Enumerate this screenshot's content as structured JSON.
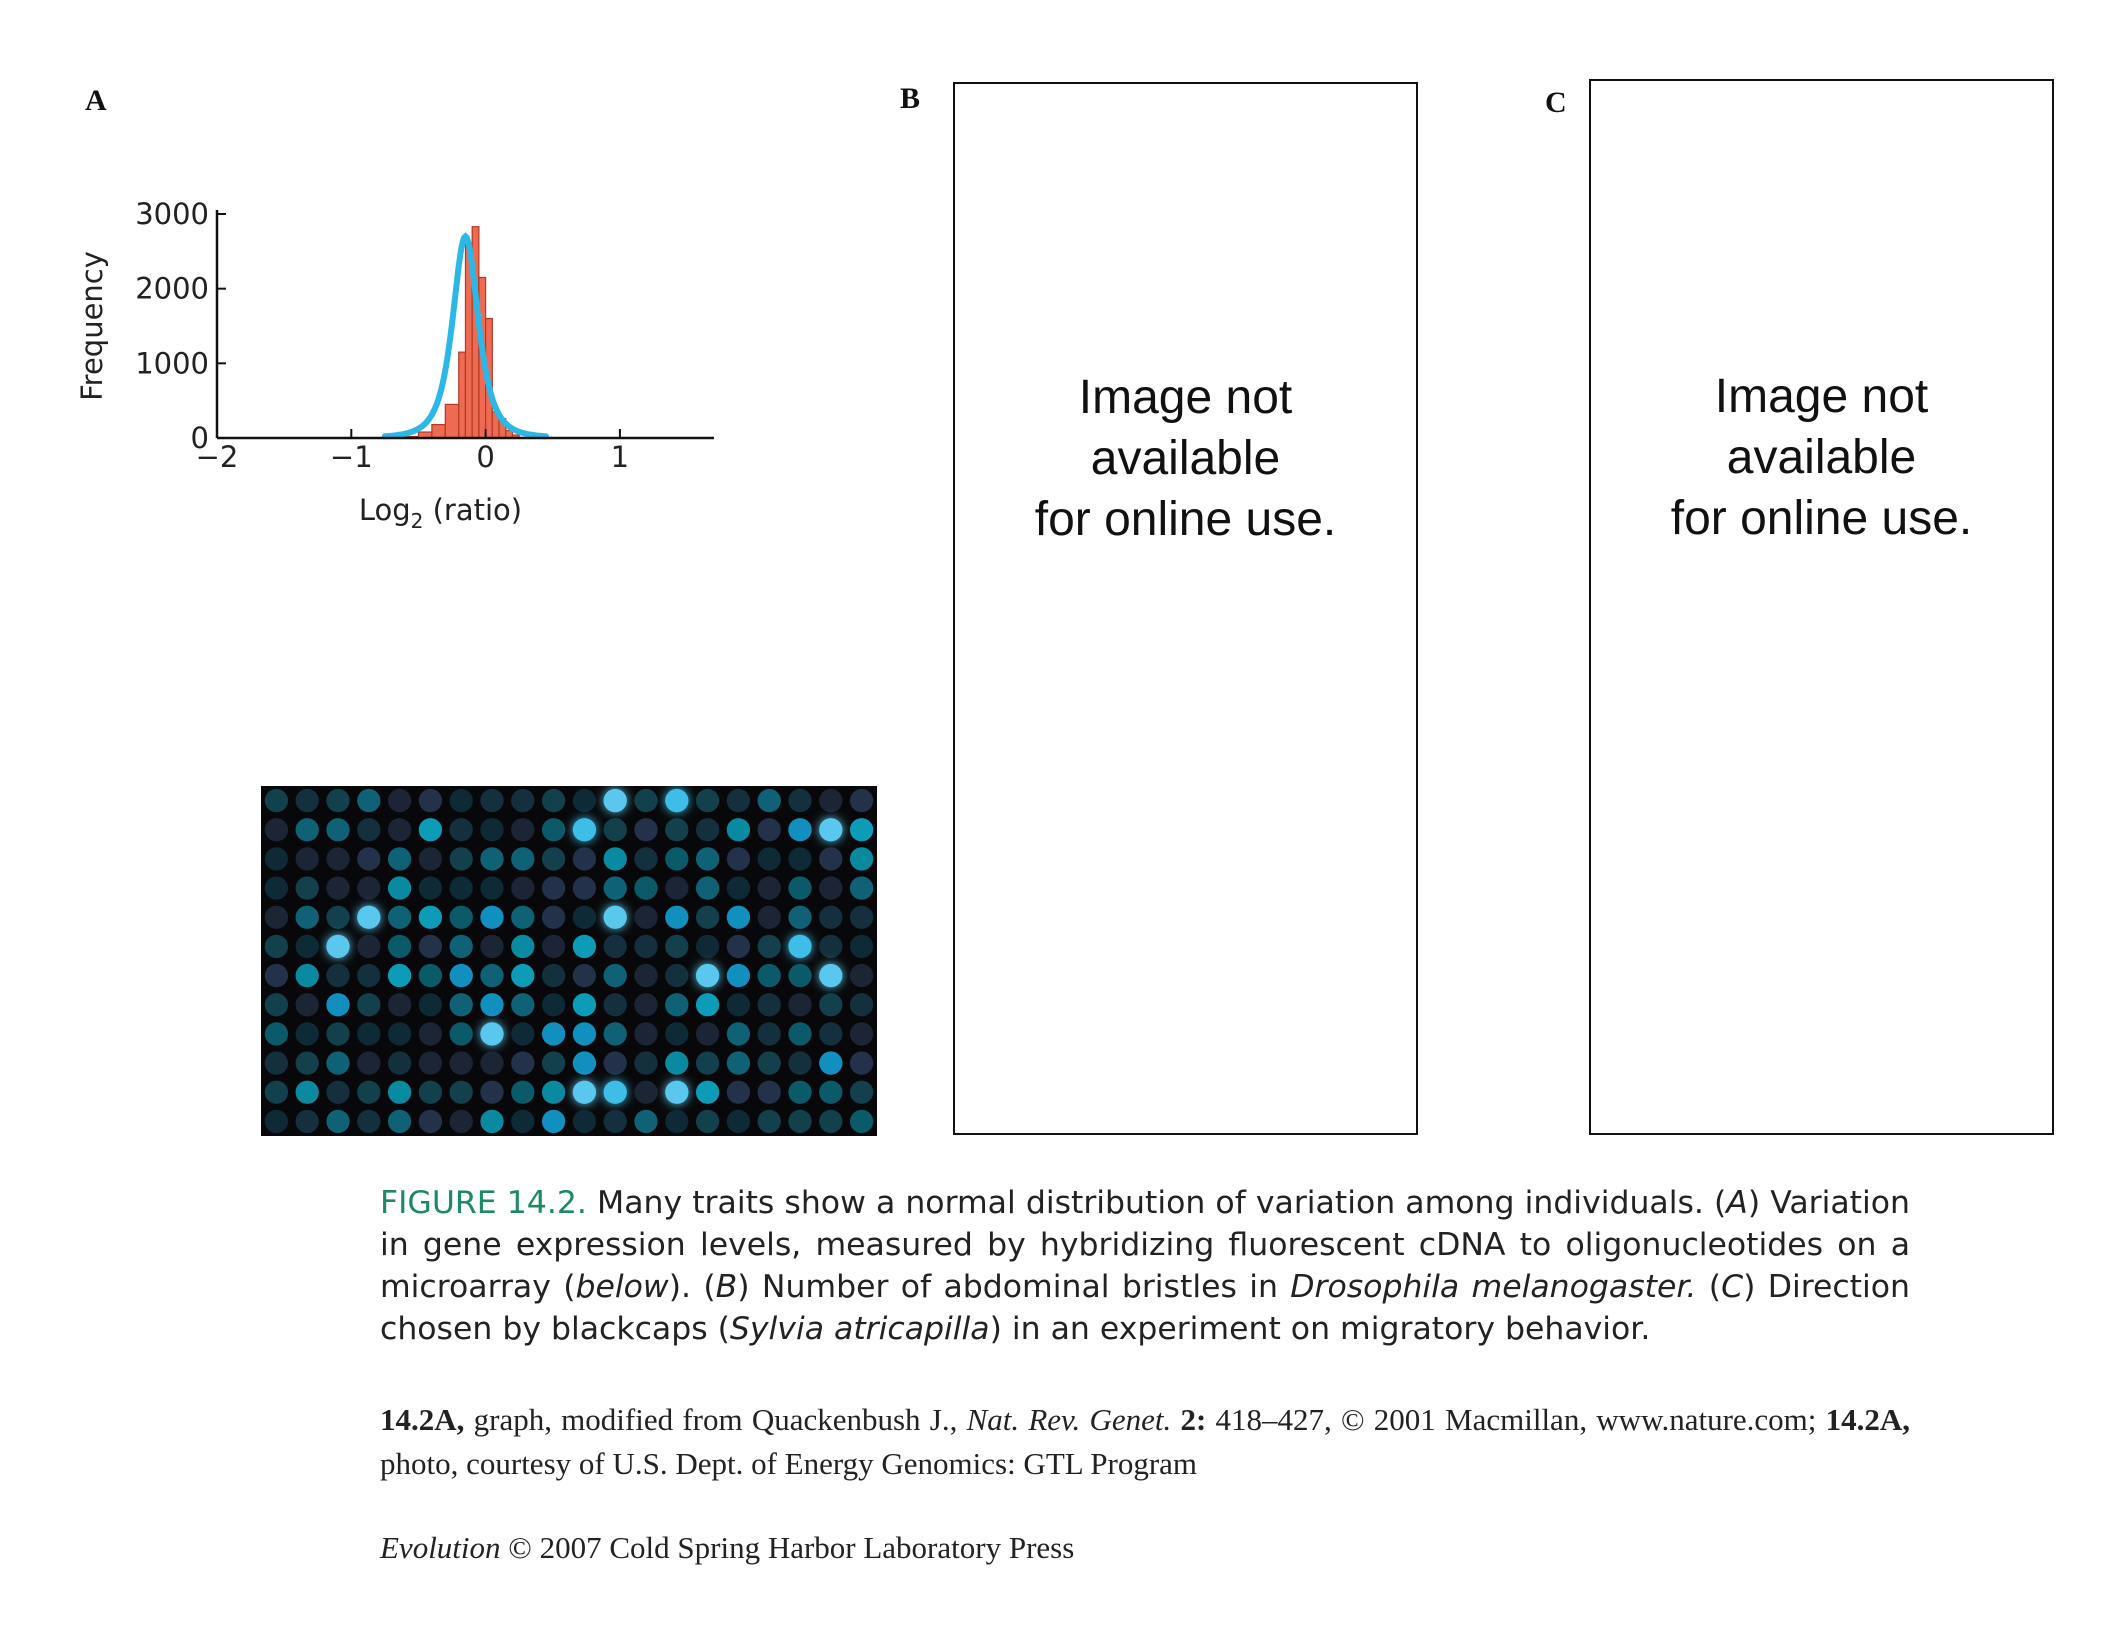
{
  "panel_labels": {
    "a": "A",
    "b": "B",
    "c": "C"
  },
  "placeholder_text": "Image not\navailable\nfor online use.",
  "chart_data": {
    "type": "bar",
    "title": "",
    "xlabel": "Log₂ (ratio)",
    "xlabel_base": "Log",
    "xlabel_sub": "2",
    "xlabel_rest": " (ratio)",
    "ylabel": "Frequency",
    "xlim": [
      -2,
      1.7
    ],
    "ylim": [
      0,
      3000
    ],
    "xticks": [
      -2,
      -1,
      0,
      1
    ],
    "xtick_labels": [
      "−2",
      "−1",
      "0",
      "1"
    ],
    "yticks": [
      0,
      1000,
      2000,
      3000
    ],
    "ytick_labels": [
      "0",
      "1000",
      "2000",
      "3000"
    ],
    "bin_width": 0.1,
    "bins": [
      {
        "x0": -0.6,
        "count": 20
      },
      {
        "x0": -0.5,
        "count": 80
      },
      {
        "x0": -0.4,
        "count": 180
      },
      {
        "x0": -0.3,
        "count": 450
      },
      {
        "x0": -0.2,
        "count": 1150
      },
      {
        "x0": -0.15,
        "count": 2600
      },
      {
        "x0": -0.1,
        "count": 2830
      },
      {
        "x0": -0.05,
        "count": 2150
      },
      {
        "x0": 0.0,
        "count": 1600
      },
      {
        "x0": 0.05,
        "count": 350
      },
      {
        "x0": 0.1,
        "count": 260
      },
      {
        "x0": 0.15,
        "count": 100
      },
      {
        "x0": 0.2,
        "count": 40
      }
    ],
    "fit_curve": {
      "type": "gaussian-like",
      "peak_x": -0.15,
      "peak_y": 2700,
      "sigma": 0.13,
      "x_range": [
        -0.75,
        0.45
      ]
    },
    "colors": {
      "bars": "#ee6a52",
      "bar_edge": "#b03a24",
      "curve": "#2bb8e6",
      "axis": "#111111"
    }
  },
  "microarray": {
    "rows": 12,
    "cols": 20,
    "background": "#08080a",
    "colors": {
      "dark": [
        "#0d2a36",
        "#14303e",
        "#1b2536",
        "#12404c",
        "#0b5a6a",
        "#23324a",
        "#0f6275"
      ],
      "mid": [
        "#0a8aa0",
        "#0c9cb8",
        "#1190c0"
      ],
      "bright": [
        "#3cbde8",
        "#5ac8ee"
      ]
    }
  },
  "caption": {
    "label": "FIGURE 14.2.",
    "text_1": " Many traits show a normal distribution of variation among individuals. (",
    "em_a": "A",
    "text_2": ") Variation in gene expression levels, measured by hybridizing fluorescent cDNA to oligonucleotides on a microarray (",
    "em_below": "below",
    "text_3": "). (",
    "em_b": "B",
    "text_4": ") Number of abdominal bristles in ",
    "em_species_1": "Drosophila melanogaster.",
    "text_5": " (",
    "em_c": "C",
    "text_6": ") Direction chosen by blackcaps (",
    "em_species_2": "Sylvia atricapilla",
    "text_7": ") in an experiment on migratory behavior."
  },
  "credits": {
    "b1": "14.2A,",
    "t1": " graph, modified from Quackenbush J., ",
    "journal": "Nat. Rev. Genet.",
    "t2": " ",
    "vol": "2:",
    "t3": " 418–427, © 2001 Macmillan, www.nature.com; ",
    "b2": "14.2A,",
    "t4": " photo, courtesy of U.S. Dept. of Energy Genomics: GTL Program"
  },
  "copyright": {
    "book": "Evolution",
    "rest": " © 2007 Cold Spring Harbor Laboratory Press"
  }
}
